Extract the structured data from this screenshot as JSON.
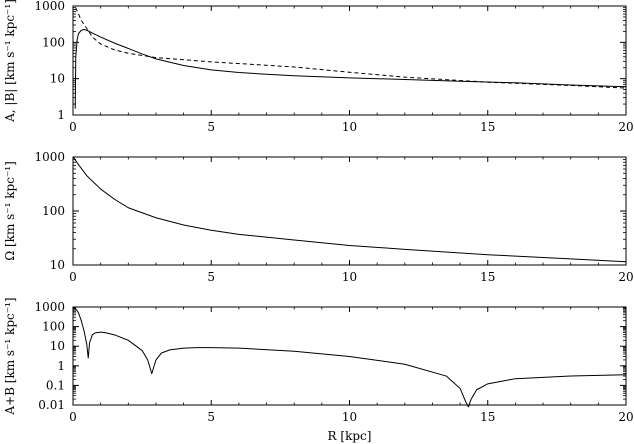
{
  "chart_data": [
    {
      "type": "line",
      "ylabel": "A, |B| [km s⁻¹ kpc⁻¹]",
      "xlabel": "",
      "log_y": true,
      "xlim": [
        0,
        20
      ],
      "ylim": [
        1,
        1000
      ],
      "grid": false,
      "x_ticks": [
        "0",
        "5",
        "10",
        "15",
        "20"
      ],
      "y_ticks": [
        "1",
        "10",
        "100",
        "1000"
      ],
      "series": [
        {
          "style": "solid",
          "x": [
            0.08,
            0.1,
            0.15,
            0.2,
            0.3,
            0.4,
            0.5,
            0.7,
            1,
            1.5,
            2,
            2.5,
            3,
            4,
            5,
            6,
            7,
            8,
            10,
            12,
            14,
            16,
            18,
            20
          ],
          "y": [
            1.5,
            40,
            120,
            175,
            215,
            225,
            215,
            180,
            140,
            95,
            68,
            48,
            35,
            23,
            17.5,
            14.8,
            13.2,
            12,
            10.5,
            9.5,
            8.5,
            7.7,
            6.7,
            6
          ]
        },
        {
          "style": "dashed",
          "x": [
            0.1,
            0.2,
            0.3,
            0.5,
            0.7,
            1,
            1.5,
            2,
            3,
            5,
            8,
            10,
            12,
            15,
            18,
            20
          ],
          "y": [
            900,
            600,
            400,
            240,
            140,
            90,
            62,
            50,
            38,
            29,
            21,
            15,
            11,
            8,
            6.5,
            5.5
          ]
        }
      ]
    },
    {
      "type": "line",
      "ylabel": "Ω [km s⁻¹ kpc⁻¹]",
      "xlabel": "",
      "log_y": true,
      "xlim": [
        0,
        20
      ],
      "ylim": [
        10,
        1000
      ],
      "grid": false,
      "x_ticks": [
        "0",
        "5",
        "10",
        "15",
        "20"
      ],
      "y_ticks": [
        "10",
        "100",
        "1000"
      ],
      "series": [
        {
          "style": "solid",
          "x": [
            0.02,
            0.2,
            0.5,
            1,
            1.5,
            2,
            3,
            4,
            5,
            6,
            8,
            10,
            12,
            15,
            18,
            20
          ],
          "y": [
            980,
            720,
            450,
            255,
            165,
            115,
            75,
            55,
            44,
            37,
            29,
            23,
            19.5,
            15.5,
            13,
            11.5
          ]
        }
      ]
    },
    {
      "type": "line",
      "ylabel": "A+B [km s⁻¹ kpc⁻¹]",
      "xlabel": "R [kpc]",
      "log_y": true,
      "xlim": [
        0,
        20
      ],
      "ylim": [
        0.01,
        1000
      ],
      "grid": false,
      "x_ticks": [
        "0",
        "5",
        "10",
        "15",
        "20"
      ],
      "y_ticks": [
        "0.01",
        "0.1",
        "1",
        "10",
        "100",
        "1000"
      ],
      "series": [
        {
          "style": "solid",
          "x": [
            0.02,
            0.1,
            0.2,
            0.3,
            0.4,
            0.5,
            0.55,
            0.6,
            0.7,
            0.8,
            1,
            1.2,
            1.5,
            2,
            2.5,
            2.7,
            2.85,
            3,
            3.2,
            3.5,
            4,
            4.5,
            5,
            6,
            8,
            10,
            12,
            13.5,
            14,
            14.2,
            14.3,
            14.4,
            14.6,
            15,
            16,
            18,
            20
          ],
          "y": [
            900,
            800,
            500,
            200,
            60,
            12,
            2.5,
            15,
            38,
            48,
            52,
            48,
            38,
            20,
            6,
            2,
            0.4,
            2,
            4.5,
            6.5,
            8,
            8.5,
            8.5,
            8,
            5.5,
            3,
            1.2,
            0.3,
            0.07,
            0.015,
            0.008,
            0.02,
            0.06,
            0.12,
            0.22,
            0.3,
            0.35
          ]
        }
      ]
    }
  ]
}
